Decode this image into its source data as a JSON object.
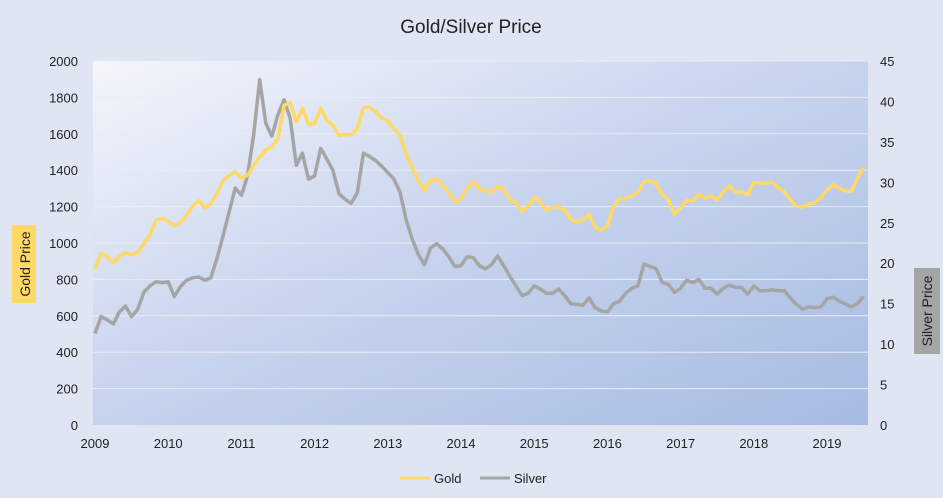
{
  "chart_data": {
    "type": "line",
    "title": "Gold/Silver Price",
    "xlabel": "",
    "ylabel": "Gold Price",
    "y2label": "Silver Price",
    "x_start": 2009.0,
    "x_step_months": 1,
    "xlim": [
      2009,
      2019.55
    ],
    "x_ticks": [
      "2009",
      "2010",
      "2011",
      "2012",
      "2013",
      "2014",
      "2015",
      "2016",
      "2017",
      "2018",
      "2019"
    ],
    "ylim": [
      0,
      2000
    ],
    "y_ticks": [
      "0",
      "200",
      "400",
      "600",
      "800",
      "1000",
      "1200",
      "1400",
      "1600",
      "1800",
      "2000"
    ],
    "y2lim": [
      0,
      45
    ],
    "y2_ticks": [
      "0",
      "5",
      "10",
      "15",
      "20",
      "25",
      "30",
      "35",
      "40",
      "45"
    ],
    "grid": true,
    "legend_position": "bottom",
    "series": [
      {
        "name": "Gold",
        "axis": "left",
        "color": "#ffd966",
        "values": [
          858,
          943,
          925,
          890,
          928,
          946,
          934,
          950,
          996,
          1043,
          1127,
          1135,
          1118,
          1095,
          1114,
          1149,
          1205,
          1232,
          1193,
          1215,
          1271,
          1343,
          1370,
          1391,
          1356,
          1372,
          1424,
          1474,
          1512,
          1529,
          1573,
          1756,
          1771,
          1665,
          1739,
          1652,
          1656,
          1743,
          1675,
          1649,
          1591,
          1596,
          1594,
          1630,
          1745,
          1747,
          1722,
          1685,
          1671,
          1627,
          1593,
          1487,
          1414,
          1343,
          1286,
          1347,
          1349,
          1316,
          1275,
          1225,
          1244,
          1300,
          1336,
          1299,
          1287,
          1279,
          1311,
          1296,
          1239,
          1222,
          1176,
          1201,
          1251,
          1227,
          1179,
          1198,
          1199,
          1181,
          1128,
          1117,
          1125,
          1159,
          1086,
          1068,
          1097,
          1200,
          1246,
          1242,
          1260,
          1276,
          1337,
          1340,
          1326,
          1266,
          1238,
          1157,
          1192,
          1234,
          1231,
          1267,
          1246,
          1260,
          1236,
          1283,
          1315,
          1279,
          1282,
          1265,
          1331,
          1331,
          1325,
          1335,
          1304,
          1281,
          1238,
          1201,
          1198,
          1215,
          1221,
          1250,
          1291,
          1320,
          1300,
          1286,
          1284,
          1359,
          1413
        ]
      },
      {
        "name": "Silver",
        "axis": "right",
        "color": "#a5a5a5",
        "values": [
          11.3,
          13.4,
          13.0,
          12.5,
          14.0,
          14.7,
          13.4,
          14.3,
          16.4,
          17.2,
          17.7,
          17.6,
          17.7,
          15.9,
          17.1,
          17.9,
          18.2,
          18.3,
          17.9,
          18.2,
          20.6,
          23.4,
          26.4,
          29.3,
          28.4,
          30.8,
          35.8,
          42.7,
          37.3,
          35.7,
          38.4,
          40.2,
          37.9,
          32.1,
          33.6,
          30.4,
          30.8,
          34.2,
          32.9,
          31.5,
          28.6,
          27.9,
          27.4,
          28.7,
          33.6,
          33.2,
          32.7,
          32.0,
          31.2,
          30.4,
          28.8,
          25.4,
          23.0,
          21.1,
          19.8,
          21.9,
          22.4,
          21.8,
          20.8,
          19.6,
          19.7,
          20.8,
          20.7,
          19.7,
          19.3,
          19.8,
          20.9,
          19.7,
          18.4,
          17.2,
          16.0,
          16.3,
          17.2,
          16.8,
          16.3,
          16.3,
          16.8,
          16.0,
          15.0,
          14.9,
          14.8,
          15.7,
          14.5,
          14.1,
          14.0,
          15.0,
          15.3,
          16.3,
          16.9,
          17.2,
          19.9,
          19.6,
          19.3,
          17.6,
          17.4,
          16.4,
          16.9,
          17.9,
          17.6,
          18.0,
          16.9,
          16.9,
          16.2,
          16.9,
          17.3,
          17.0,
          17.0,
          16.2,
          17.2,
          16.6,
          16.6,
          16.7,
          16.6,
          16.6,
          15.7,
          14.9,
          14.3,
          14.6,
          14.5,
          14.6,
          15.6,
          15.8,
          15.3,
          15.0,
          14.6,
          15.0,
          15.9
        ]
      }
    ]
  }
}
